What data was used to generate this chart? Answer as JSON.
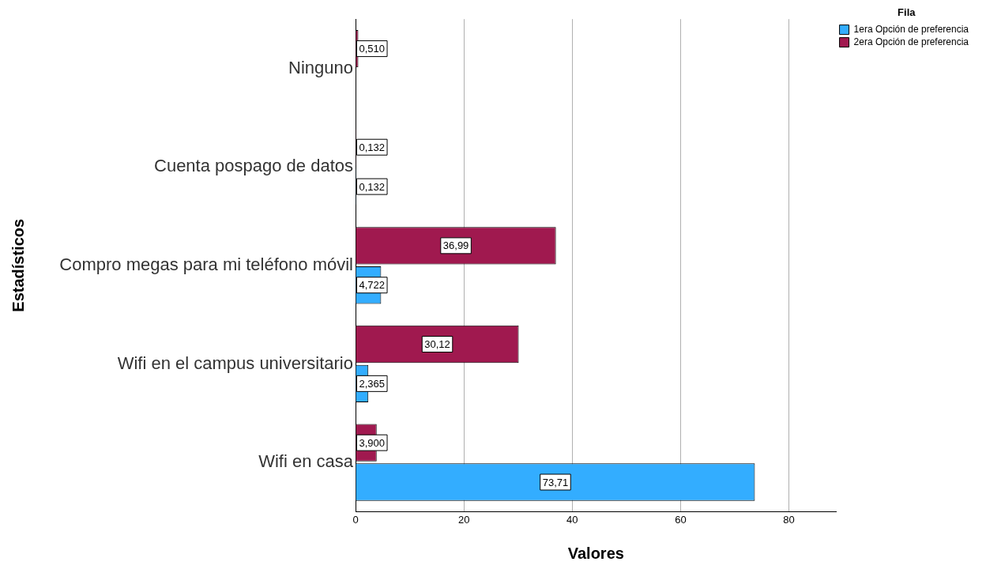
{
  "chart_data": {
    "type": "bar",
    "orientation": "horizontal",
    "categories": [
      "Ninguno",
      "Cuenta pospago de datos",
      "Compro megas para mi teléfono móvil",
      "Wifi en el campus universitario",
      "Wifi en casa"
    ],
    "series": [
      {
        "name": "1era Opción de preferencia",
        "color": "#33adff",
        "values": [
          null,
          0.132,
          4.722,
          2.365,
          73.71
        ],
        "value_labels": [
          null,
          "0,132",
          "4,722",
          "2,365",
          "73,71"
        ]
      },
      {
        "name": "2era Opción de preferencia",
        "color": "#a0194f",
        "values": [
          0.51,
          0.132,
          36.99,
          30.12,
          3.9
        ],
        "value_labels": [
          "0,510",
          "0,132",
          "36,99",
          "30,12",
          "3,900"
        ]
      }
    ],
    "xlim": [
      0,
      88.75
    ],
    "xticks": [
      0,
      20,
      40,
      60,
      80
    ],
    "grid": "x",
    "xlabel": "Valores",
    "ylabel": "Estadísticos",
    "legend_title": "Fila",
    "legend": "top right"
  }
}
